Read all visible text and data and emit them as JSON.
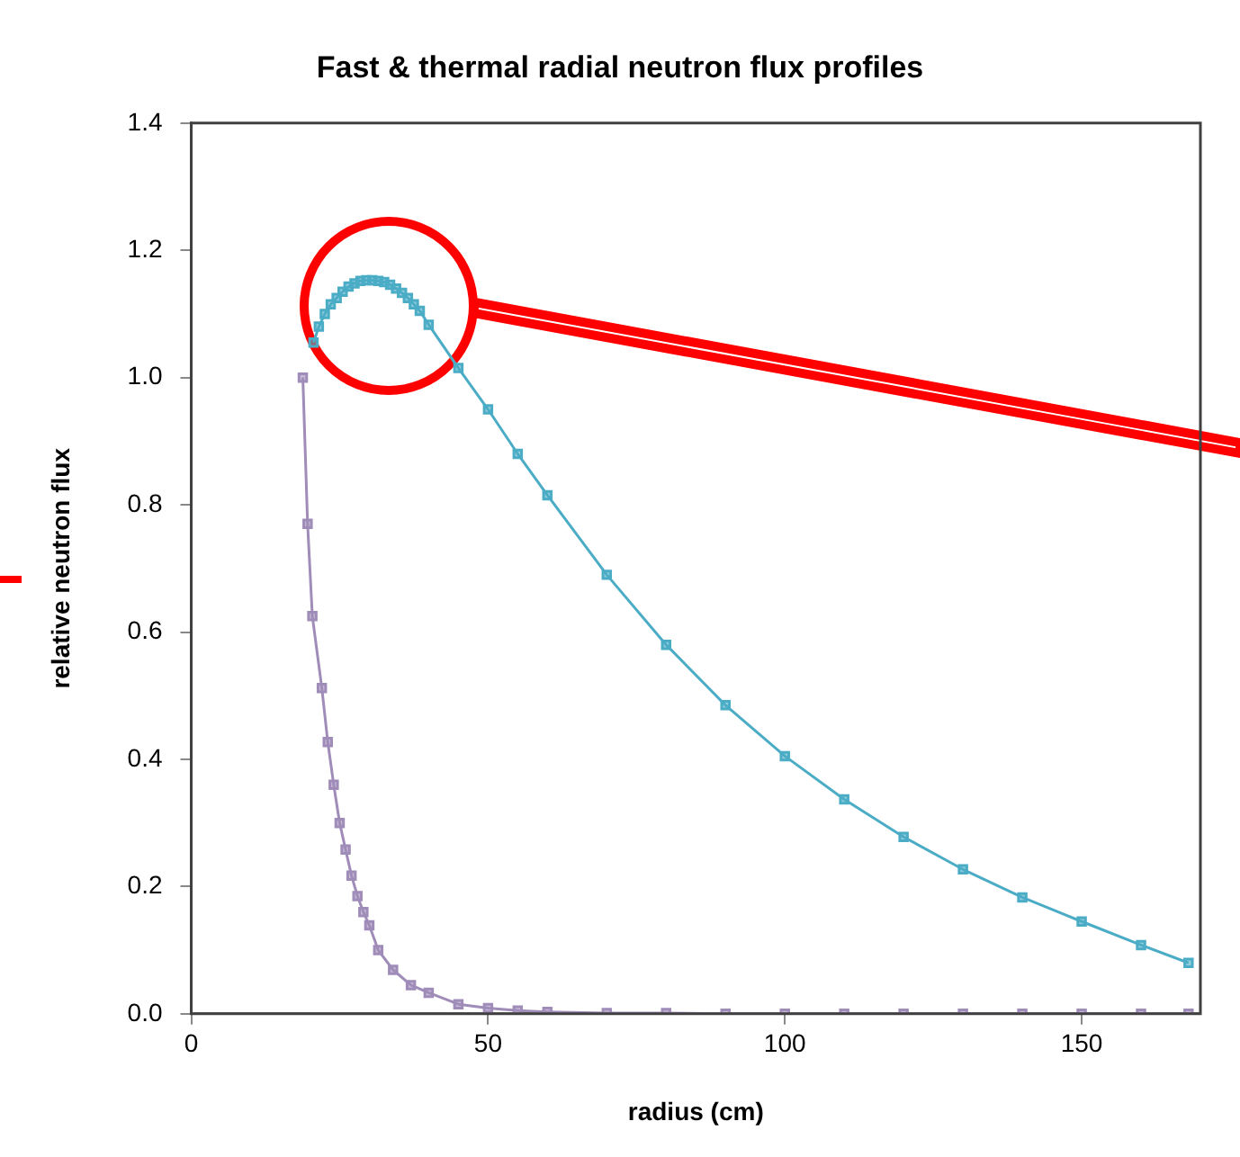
{
  "chart_data": {
    "type": "line",
    "title": "Fast & thermal radial neutron flux profiles",
    "xlabel": "radius (cm)",
    "ylabel": "relative neutron flux",
    "series": [
      {
        "color": "#4bacc6",
        "x": [
          20.6,
          21.5,
          22.5,
          23.5,
          24.5,
          25.5,
          26.5,
          27.5,
          28.5,
          29.5,
          30.5,
          31.5,
          32.5,
          33.5,
          34.5,
          35.5,
          36.5,
          37.5,
          38.5,
          40,
          45,
          50,
          55,
          60,
          70,
          80,
          90,
          100,
          110,
          120,
          130,
          140,
          150,
          160,
          168
        ],
        "values": [
          1.055,
          1.08,
          1.1,
          1.115,
          1.125,
          1.135,
          1.143,
          1.148,
          1.152,
          1.153,
          1.153,
          1.152,
          1.15,
          1.146,
          1.14,
          1.133,
          1.125,
          1.115,
          1.105,
          1.083,
          1.015,
          0.95,
          0.88,
          0.815,
          0.69,
          0.58,
          0.485,
          0.405,
          0.337,
          0.278,
          0.227,
          0.183,
          0.145,
          0.108,
          0.08
        ]
      },
      {
        "color": "#a08cb8",
        "x": [
          18.8,
          19.6,
          20.4,
          22,
          23,
          24,
          25,
          26,
          27,
          28,
          29,
          30,
          31.5,
          34,
          37,
          40,
          45,
          50,
          55,
          60,
          70,
          80,
          90,
          100,
          110,
          120,
          130,
          140,
          150,
          160,
          168
        ],
        "values": [
          1.0,
          0.77,
          0.625,
          0.512,
          0.427,
          0.36,
          0.3,
          0.258,
          0.217,
          0.185,
          0.16,
          0.139,
          0.1,
          0.069,
          0.045,
          0.033,
          0.015,
          0.009,
          0.005,
          0.003,
          0.001,
          0.001,
          0,
          0,
          0,
          0,
          0,
          0,
          0,
          0,
          0
        ]
      }
    ],
    "xlim": [
      0,
      170
    ],
    "xticks": [
      0,
      50,
      100,
      150
    ],
    "ylim": [
      0,
      1.4
    ],
    "yticks": [
      {
        "value": 0,
        "label": "0.0"
      },
      {
        "value": 0.2,
        "label": "0.2"
      },
      {
        "value": 0.4,
        "label": "0.4"
      },
      {
        "value": 0.6,
        "label": "0.6"
      },
      {
        "value": 0.8,
        "label": "0.8"
      },
      {
        "value": 1.0,
        "label": "1.0"
      },
      {
        "value": 1.2,
        "label": "1.2"
      },
      {
        "value": 1.4,
        "label": "1.4"
      }
    ],
    "grid": false,
    "legend": false,
    "marker": "square",
    "line_style": "solid"
  }
}
